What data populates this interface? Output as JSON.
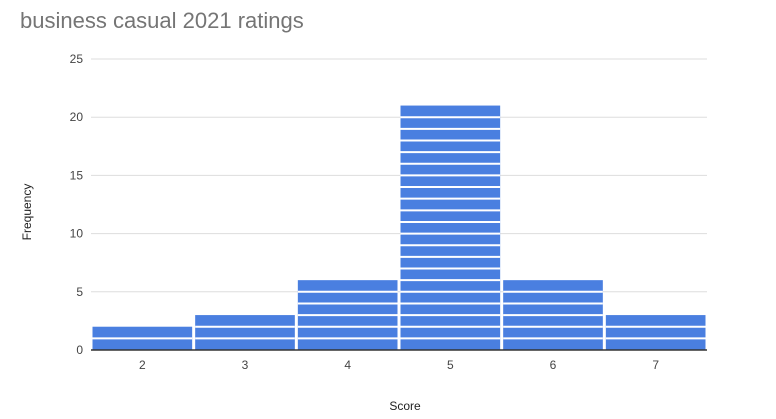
{
  "chart_data": {
    "type": "bar",
    "title": "business casual 2021 ratings",
    "xlabel": "Score",
    "ylabel": "Frequency",
    "categories": [
      "2",
      "3",
      "4",
      "5",
      "6",
      "7"
    ],
    "values": [
      2,
      3,
      6,
      21,
      6,
      3
    ],
    "ylim": [
      0,
      25
    ],
    "yticks": [
      "0",
      "5",
      "10",
      "15",
      "20",
      "25"
    ],
    "grid": true,
    "legend": "none",
    "colors": {
      "bar": "#4a7fe0",
      "grid": "#dddddd",
      "axis": "#333333",
      "segment_line": "#ffffff"
    }
  }
}
